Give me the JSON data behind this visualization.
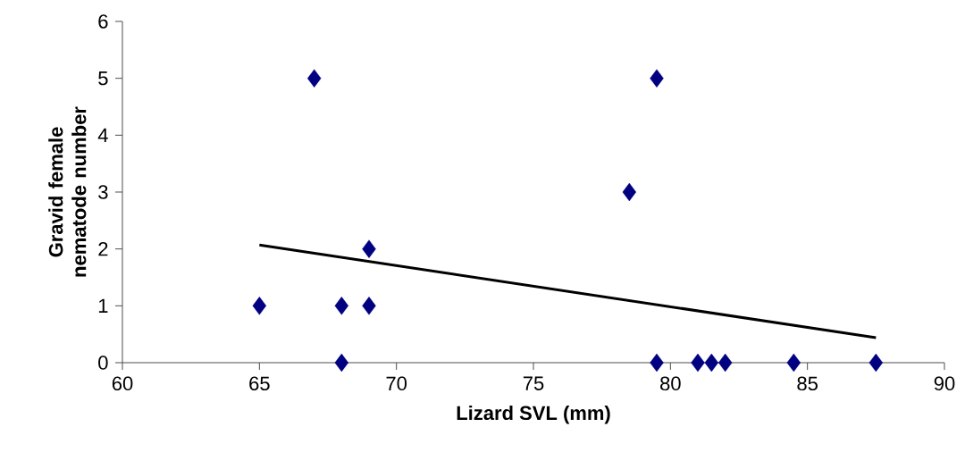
{
  "chart_data": {
    "type": "scatter",
    "xlabel": "Lizard SVL (mm)",
    "ylabel": "Gravid female nematode number",
    "xlim": [
      60,
      90
    ],
    "ylim": [
      0,
      6
    ],
    "xticks": [
      60,
      65,
      70,
      75,
      80,
      85,
      90
    ],
    "yticks": [
      0,
      1,
      2,
      3,
      4,
      5,
      6
    ],
    "marker": "diamond",
    "series": [
      {
        "color": "#000080",
        "x": [
          65,
          67,
          68,
          68,
          69,
          69,
          78.5,
          79.5,
          79.5,
          81,
          81.5,
          82,
          84.5,
          87.5
        ],
        "values": [
          1,
          5,
          1,
          0,
          2,
          1,
          3,
          5,
          0,
          0,
          0,
          0,
          0,
          0
        ]
      },
      {
        "type": "line",
        "color": "#000000",
        "marker": "none",
        "x": [
          65,
          87.5
        ],
        "values": [
          2.07,
          0.44
        ]
      }
    ]
  }
}
